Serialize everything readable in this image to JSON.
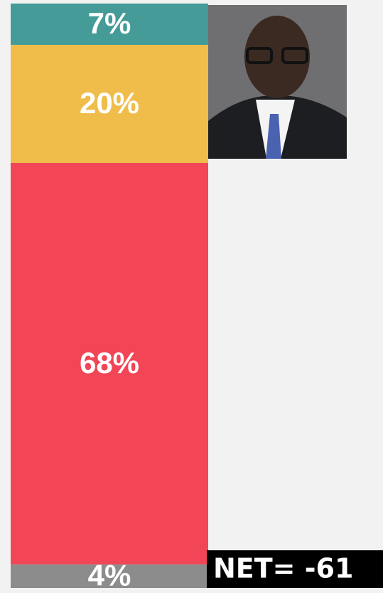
{
  "chart_data": {
    "type": "stacked-bar",
    "categories": [
      null
    ],
    "series": [
      {
        "color": "#449b97",
        "values": [
          7
        ],
        "value_labels": [
          "7%"
        ]
      },
      {
        "color": "#f0bc4a",
        "values": [
          20
        ],
        "value_labels": [
          "20%"
        ]
      },
      {
        "color": "#f24556",
        "values": [
          68
        ],
        "value_labels": [
          "68%"
        ]
      },
      {
        "color": "#8c8c8c",
        "values": [
          4
        ],
        "value_labels": [
          "4%"
        ]
      }
    ],
    "annotation": "NET= -61"
  }
}
